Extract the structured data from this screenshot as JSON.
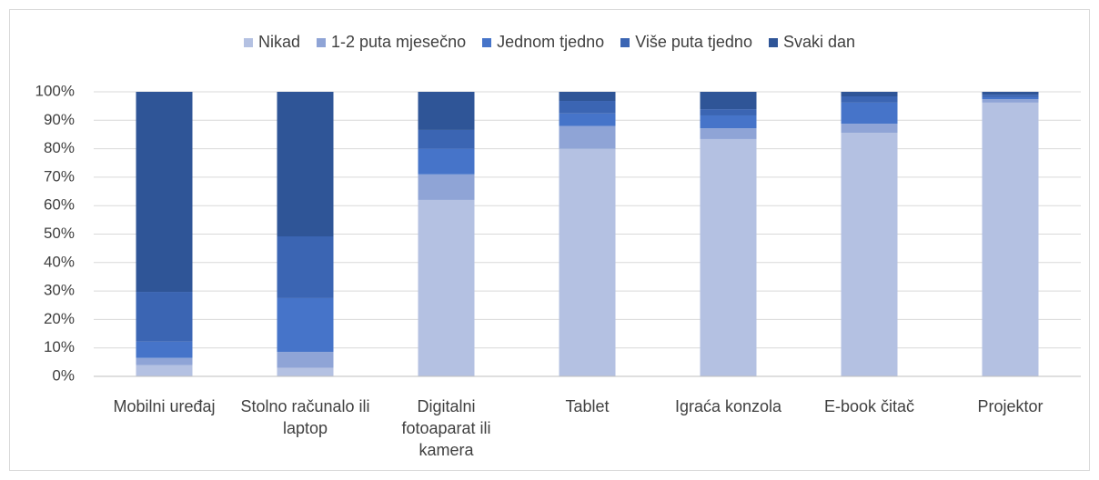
{
  "chart_data": {
    "type": "stacked_bar_100",
    "categories": [
      "Mobilni uređaj",
      "Stolno računalo ili laptop",
      "Digitalni fotoaparat ili kamera",
      "Tablet",
      "Igraća konzola",
      "E-book čitač",
      "Projektor"
    ],
    "series": [
      {
        "name": "Nikad",
        "color": "#b4c1e2",
        "values": [
          4,
          3,
          62,
          80,
          83.4,
          85.6,
          96.2
        ]
      },
      {
        "name": "1-2 puta mjesečno",
        "color": "#8fa4d6",
        "values": [
          2.5,
          5.6,
          9,
          8,
          3.8,
          3.2,
          1.2
        ]
      },
      {
        "name": "Jednom tjedno",
        "color": "#4674c9",
        "values": [
          5.7,
          18.9,
          9,
          4.4,
          4.5,
          7.4,
          0.7
        ]
      },
      {
        "name": "Više puta tjedno",
        "color": "#3b65b3",
        "values": [
          17.5,
          21.7,
          6.6,
          4.4,
          2.2,
          2.2,
          0.9
        ]
      },
      {
        "name": "Svaki dan",
        "color": "#2f5597",
        "values": [
          70.3,
          50.8,
          13.4,
          3.2,
          6.1,
          1.6,
          1.0
        ]
      }
    ],
    "ylim": [
      0,
      100
    ],
    "yticks": [
      {
        "value": 0,
        "label": "0%"
      },
      {
        "value": 10,
        "label": "10%"
      },
      {
        "value": 20,
        "label": "20%"
      },
      {
        "value": 30,
        "label": "30%"
      },
      {
        "value": 40,
        "label": "40%"
      },
      {
        "value": 50,
        "label": "50%"
      },
      {
        "value": 60,
        "label": "60%"
      },
      {
        "value": 70,
        "label": "70%"
      },
      {
        "value": 80,
        "label": "80%"
      },
      {
        "value": 90,
        "label": "90%"
      },
      {
        "value": 100,
        "label": "100%"
      }
    ],
    "grid": true,
    "legend": "top"
  }
}
